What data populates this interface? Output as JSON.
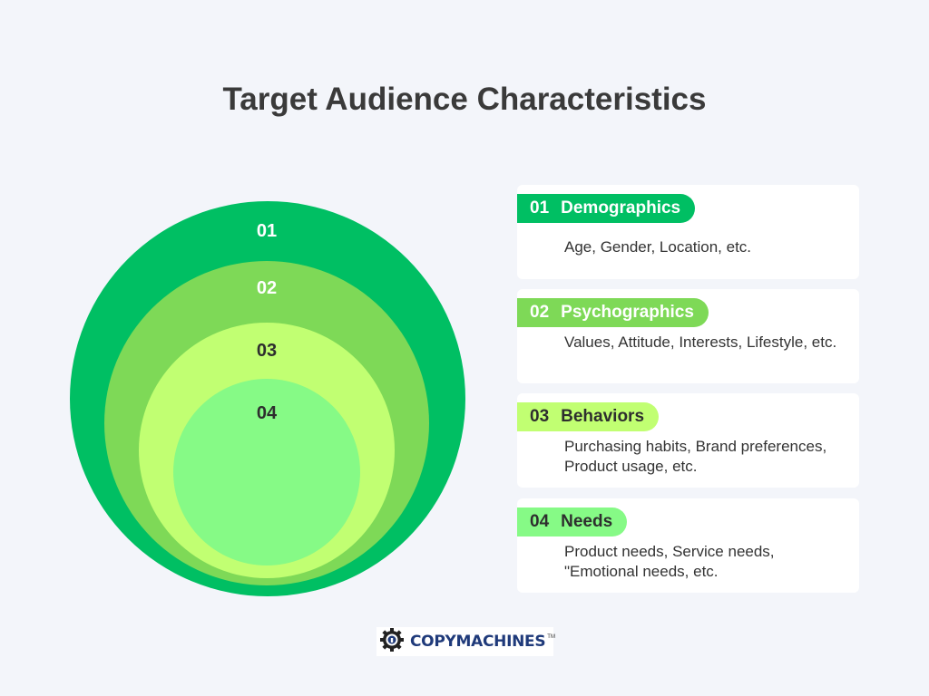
{
  "title": "Target Audience Characteristics",
  "colors": {
    "level1": "#00bf63",
    "level2": "#7ed957",
    "level3": "#c1ff72",
    "level4": "#86fa86",
    "background": "#f3f5fa"
  },
  "rings": [
    {
      "label": "01"
    },
    {
      "label": "02"
    },
    {
      "label": "03"
    },
    {
      "label": "04"
    }
  ],
  "cards": [
    {
      "number": "01",
      "title": "Demographics",
      "description": "Age, Gender, Location, etc."
    },
    {
      "number": "02",
      "title": "Psychographics",
      "description": "Values, Attitude, Interests, Lifestyle, etc."
    },
    {
      "number": "03",
      "title": "Behaviors",
      "description": "Purchasing habits, Brand preferences, Product usage, etc."
    },
    {
      "number": "04",
      "title": "Needs",
      "description": "Product needs, Service needs, \"Emotional needs, etc."
    }
  ],
  "logo": {
    "text": "COPYMACHINES",
    "tm": "TM",
    "icon": "gear-icon"
  }
}
